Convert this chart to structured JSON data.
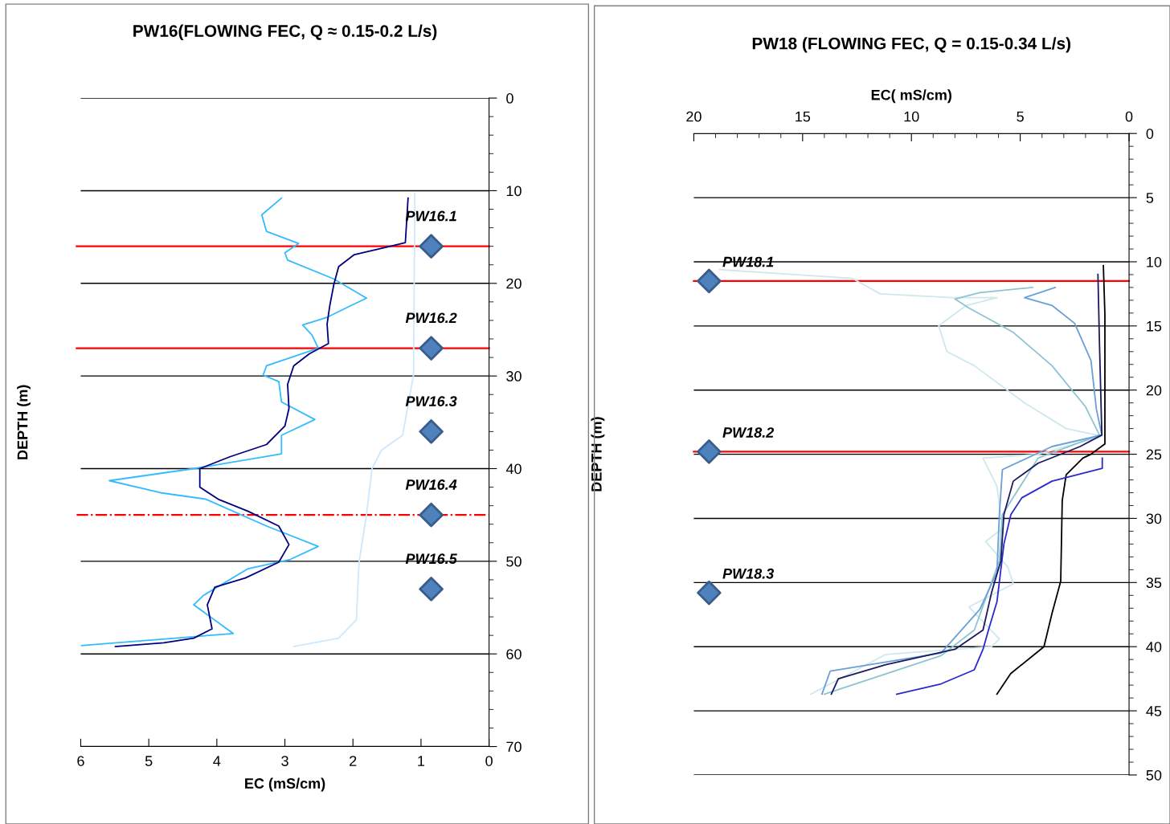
{
  "chart_data": [
    {
      "type": "line",
      "title": "PW16(FLOWING FEC, Q ≈ 0.15-0.2 L/s)",
      "xlabel": "EC (mS/cm)",
      "ylabel": "DEPTH (m)",
      "xlim": [
        6,
        0
      ],
      "xticks": [
        6,
        5,
        4,
        3,
        2,
        1,
        0
      ],
      "ylim": [
        70,
        0
      ],
      "yticks": [
        0,
        10,
        20,
        30,
        40,
        50,
        60,
        70
      ],
      "grid": "y",
      "series": [
        {
          "color": "#cce8ff",
          "x": [
            1.09,
            1.11,
            1.27,
            1.58,
            1.72,
            1.8,
            1.91,
            1.95,
            2.21,
            2.87
          ],
          "values": [
            10.3,
            29.9,
            36.4,
            38.0,
            40.0,
            44.9,
            50.1,
            56.3,
            58.3,
            59.2
          ]
        },
        {
          "color": "#33bbff",
          "x": [
            3.05,
            3.34,
            3.27,
            2.8,
            3.0,
            2.96,
            2.29,
            1.8,
            2.03,
            2.39,
            2.74,
            2.6,
            2.51,
            3.27,
            3.32,
            3.09,
            3.05,
            2.56,
            3.05,
            3.05,
            4.34,
            5.58,
            4.83,
            4.16,
            3.27,
            2.51,
            2.92,
            3.54,
            4.2,
            4.34,
            3.76,
            5.99
          ],
          "values": [
            10.8,
            12.6,
            14.4,
            15.7,
            16.7,
            17.5,
            19.5,
            21.6,
            22.4,
            23.7,
            24.5,
            25.6,
            27.0,
            28.9,
            29.9,
            30.6,
            32.8,
            34.7,
            36.4,
            38.4,
            40.0,
            41.3,
            42.6,
            43.3,
            46.2,
            48.4,
            49.8,
            50.8,
            53.7,
            54.7,
            57.8,
            59.1
          ]
        },
        {
          "color": "#000080",
          "x": [
            1.19,
            1.23,
            1.45,
            1.98,
            2.21,
            2.28,
            2.34,
            2.38,
            2.36,
            2.64,
            2.87,
            2.96,
            2.94,
            3.0,
            3.27,
            3.8,
            4.25,
            4.25,
            3.98,
            3.54,
            3.09,
            2.94,
            3.09,
            3.58,
            4.03,
            4.14,
            4.07,
            4.34,
            4.78,
            5.49
          ],
          "values": [
            10.8,
            15.6,
            16.0,
            16.9,
            18.2,
            20.1,
            22.4,
            24.4,
            26.5,
            27.6,
            28.9,
            30.9,
            33.5,
            35.4,
            37.4,
            38.7,
            40.0,
            42.0,
            43.3,
            44.6,
            46.2,
            48.2,
            50.1,
            51.8,
            52.8,
            54.7,
            57.3,
            58.3,
            58.8,
            59.2
          ]
        },
        {
          "type": "scatter",
          "marker": "diamond",
          "color": "#4f81bd",
          "x": [
            0.85,
            0.85,
            0.85,
            0.85,
            0.85
          ],
          "values": [
            16,
            27,
            36,
            45,
            53
          ]
        }
      ],
      "ref_lines": [
        {
          "axis": "y",
          "value": 16,
          "color": "#ff0000",
          "line_style": "solid"
        },
        {
          "axis": "y",
          "value": 27,
          "color": "#ff0000",
          "line_style": "solid"
        },
        {
          "axis": "y",
          "value": 45,
          "color": "#ff0000",
          "line_style": "dashdot"
        }
      ],
      "annotations": [
        "PW16.1",
        "PW16.2",
        "PW16.3",
        "PW16.4",
        "PW16.5"
      ]
    },
    {
      "type": "line",
      "title": "PW18 (FLOWING FEC, Q = 0.15-0.34 L/s)",
      "xlabel": "EC( mS/cm)",
      "ylabel": "DEPTH (m)",
      "xlim": [
        20,
        0
      ],
      "xticks": [
        20,
        15,
        10,
        5,
        0
      ],
      "ylim": [
        50,
        0
      ],
      "yticks": [
        0,
        5,
        10,
        15,
        20,
        25,
        30,
        35,
        40,
        45,
        50
      ],
      "grid": "y",
      "series": [
        {
          "color": "#cfe8ee",
          "x": [
            18.82,
            12.71,
            11.43,
            8.11,
            6.07,
            7.48,
            8.75,
            8.37,
            7.11,
            4.8,
            2.89,
            1.25,
            4.18,
            6.71,
            6.07,
            5.82,
            6.59,
            5.57,
            5.32,
            7.36,
            5.96,
            6.32,
            11.18,
            14.62
          ],
          "values": [
            10.6,
            11.3,
            12.5,
            12.8,
            12.8,
            13.4,
            15.0,
            17.0,
            18.1,
            21.0,
            23.0,
            23.6,
            25.0,
            25.3,
            27.5,
            30.8,
            31.8,
            33.8,
            35.1,
            36.9,
            39.4,
            40.0,
            40.6,
            43.7
          ]
        },
        {
          "color": "#8cc4d4",
          "x": [
            4.43,
            6.86,
            8.0,
            7.36,
            5.32,
            3.54,
            2.0,
            1.36,
            4.18,
            5.82,
            5.96,
            7.11,
            8.64,
            14.0
          ],
          "values": [
            12.0,
            12.4,
            12.9,
            13.6,
            15.5,
            18.1,
            21.3,
            23.5,
            25.3,
            29.7,
            33.3,
            38.7,
            40.7,
            43.7
          ]
        },
        {
          "color": "#6a9fd8",
          "x": [
            3.39,
            4.8,
            3.54,
            2.5,
            1.75,
            1.5,
            1.25,
            3.54,
            5.82,
            5.96,
            6.07,
            6.86,
            8.64,
            13.73,
            14.11
          ],
          "values": [
            12.0,
            12.8,
            13.4,
            14.8,
            17.7,
            21.5,
            23.5,
            24.4,
            26.2,
            29.7,
            34.2,
            37.1,
            40.5,
            41.9,
            43.7
          ]
        },
        {
          "color": "#000000",
          "x": [
            1.18,
            1.11,
            1.11,
            1.75,
            2.12,
            2.89,
            3.07,
            3.14,
            3.54,
            3.91,
            5.44,
            6.07
          ],
          "values": [
            10.3,
            14.1,
            24.2,
            25.0,
            25.3,
            26.6,
            28.6,
            34.9,
            37.4,
            40.0,
            42.1,
            43.7
          ]
        },
        {
          "color": "#2a2ad0",
          "x": [
            1.23,
            1.23,
            3.54,
            4.93,
            5.43,
            5.75,
            6.07,
            6.46,
            6.71,
            7.11,
            8.64,
            10.68
          ],
          "values": [
            25.3,
            26.1,
            27.1,
            28.4,
            29.7,
            32.0,
            36.5,
            38.7,
            40.2,
            41.8,
            42.9,
            43.7
          ]
        },
        {
          "color": "#1a1a5e",
          "x": [
            1.43,
            1.36,
            1.25,
            2.25,
            4.18,
            5.32,
            5.75,
            5.89,
            6.32,
            6.71,
            8.0,
            11.18,
            13.36,
            13.68
          ],
          "values": [
            10.98,
            16.3,
            23.5,
            24.4,
            25.7,
            27.1,
            29.7,
            33.3,
            35.8,
            38.7,
            40.2,
            41.4,
            42.5,
            43.7
          ]
        },
        {
          "type": "scatter",
          "marker": "diamond",
          "color": "#4f81bd",
          "x": [
            19.3,
            19.3,
            19.3
          ],
          "values": [
            11.5,
            24.8,
            35.8
          ]
        }
      ],
      "ref_lines": [
        {
          "axis": "y",
          "value": 11.5,
          "color": "#ff0000",
          "line_style": "solid"
        },
        {
          "axis": "y",
          "value": 24.8,
          "color": "#ff0000",
          "line_style": "solid"
        }
      ],
      "annotations": [
        "PW18.1",
        "PW18.2",
        "PW18.3"
      ]
    }
  ]
}
